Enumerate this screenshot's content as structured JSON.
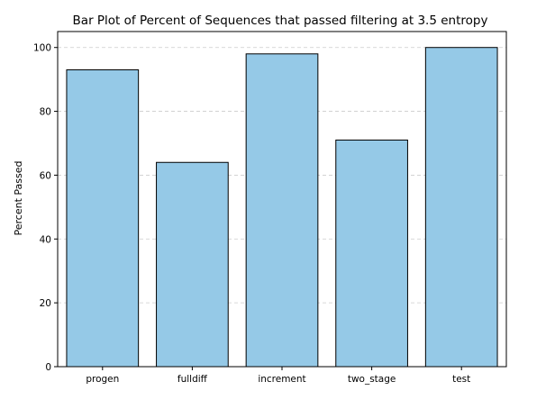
{
  "chart_data": {
    "type": "bar",
    "title": "Bar Plot of Percent of Sequences that passed filtering at 3.5 entropy",
    "xlabel": "",
    "ylabel": "Percent Passed",
    "categories": [
      "progen",
      "fulldiff",
      "increment",
      "two_stage",
      "test"
    ],
    "values": [
      93,
      64,
      98,
      71,
      100
    ],
    "ylim": [
      0,
      105
    ],
    "yticks": [
      0,
      20,
      40,
      60,
      80,
      100
    ],
    "grid": "y-dashed",
    "legend": "none",
    "bar_color": "#95c9e7",
    "bar_edge_color": "#000000",
    "grid_color": "#cccccc"
  }
}
